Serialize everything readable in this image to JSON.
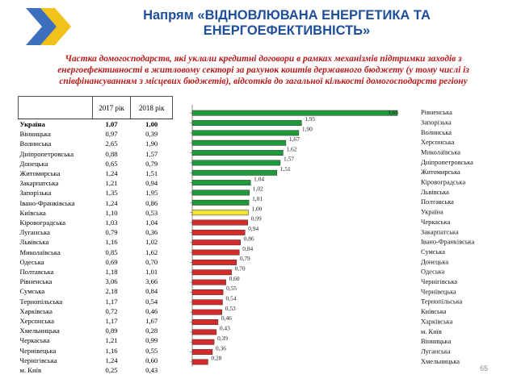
{
  "header": {
    "title_line1": "Напрям «ВІДНОВЛЮВАНА ЕНЕРГЕТИКА ТА",
    "title_line2": "ЕНЕРГОЕФЕКТИВНІСТЬ»",
    "subtitle": "Частка домогосподарств, які уклали кредитні договори в рамках механізмів підтримки заходів з енергоефективності в житловому секторі за рахунок коштів державного бюджету (у тому числі із співфінансуванням з місцевих бюджетів), відсотків до загальної кількості домогосподарств регіону",
    "logo_colors": [
      "#3c6fbe",
      "#f2c21b"
    ]
  },
  "table": {
    "columns": [
      "",
      "2017 рік",
      "2018 рік"
    ],
    "rows": [
      [
        "Україна",
        "1,07",
        "1,00"
      ],
      [
        "Вінницька",
        "0,97",
        "0,39"
      ],
      [
        "Волинська",
        "2,65",
        "1,90"
      ],
      [
        "Дніпропетровська",
        "0,88",
        "1,57"
      ],
      [
        "Донецька",
        "0,65",
        "0,79"
      ],
      [
        "Житомирська",
        "1,24",
        "1,51"
      ],
      [
        "Закарпатська",
        "1,21",
        "0,94"
      ],
      [
        "Запорізька",
        "1,35",
        "1,95"
      ],
      [
        "Івано-Франківська",
        "1,24",
        "0,86"
      ],
      [
        "Київська",
        "1,10",
        "0,53"
      ],
      [
        "Кіровоградська",
        "1,03",
        "1,04"
      ],
      [
        "Луганська",
        "0,79",
        "0,36"
      ],
      [
        "Львівська",
        "1,16",
        "1,02"
      ],
      [
        "Миколаївська",
        "0,85",
        "1,62"
      ],
      [
        "Одеська",
        "0,69",
        "0,70"
      ],
      [
        "Полтавська",
        "1,18",
        "1,01"
      ],
      [
        "Рівненська",
        "3,06",
        "3,66"
      ],
      [
        "Сумська",
        "2,18",
        "0,84"
      ],
      [
        "Тернопільська",
        "1,17",
        "0,54"
      ],
      [
        "Харківська",
        "0,72",
        "0,46"
      ],
      [
        "Херсонська",
        "1,17",
        "1,67"
      ],
      [
        "Хмельницька",
        "0,89",
        "0,28"
      ],
      [
        "Черкаська",
        "1,21",
        "0,99"
      ],
      [
        "Чернівецька",
        "1,16",
        "0,55"
      ],
      [
        "Чернігівська",
        "1,24",
        "0,60"
      ],
      [
        "м. Київ",
        "0,25",
        "0,43"
      ]
    ]
  },
  "chart_data": {
    "type": "bar",
    "orientation": "horizontal",
    "xlim": [
      0,
      3.66
    ],
    "grid": false,
    "categories": [
      "Рівненська",
      "Запорізька",
      "Волинська",
      "Херсонська",
      "Миколаївська",
      "Дніпропетровська",
      "Житомирська",
      "Кіровоградська",
      "Львівська",
      "Полтавська",
      "Україна",
      "Черкаська",
      "Закарпатська",
      "Івано-Франківська",
      "Сумська",
      "Донецька",
      "Одеська",
      "Чернігівська",
      "Чернівецька",
      "Тернопільська",
      "Київська",
      "Харківська",
      "м. Київ",
      "Вінницька",
      "Луганська",
      "Хмельницька"
    ],
    "values": [
      3.66,
      1.95,
      1.9,
      1.67,
      1.62,
      1.57,
      1.51,
      1.04,
      1.02,
      1.01,
      1.0,
      0.99,
      0.94,
      0.86,
      0.84,
      0.79,
      0.7,
      0.6,
      0.55,
      0.54,
      0.53,
      0.46,
      0.43,
      0.39,
      0.36,
      0.28
    ],
    "value_labels": [
      "3,66",
      "1,95",
      "1,90",
      "1,67",
      "1,62",
      "1,57",
      "1,51",
      "1,04",
      "1,02",
      "1,01",
      "1,00",
      "0,99",
      "0,94",
      "0,86",
      "0,84",
      "0,79",
      "0,70",
      "0,60",
      "0,55",
      "0,54",
      "0,53",
      "0,46",
      "0,43",
      "0,39",
      "0,36",
      "0,28"
    ],
    "colors": {
      "above": "#1f9a3a",
      "national": "#f3e23a",
      "below": "#d42a2a",
      "outline": "#333333"
    },
    "reference_category": "Україна"
  },
  "page_number": "65"
}
